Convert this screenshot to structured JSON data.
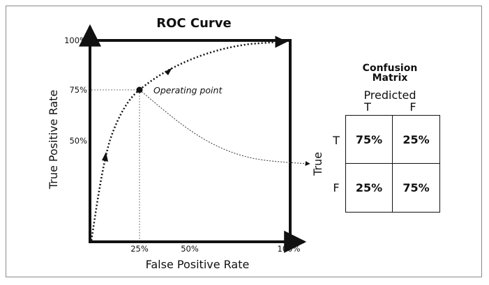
{
  "chart": {
    "title": "ROC Curve",
    "xlabel": "False Positive Rate",
    "ylabel": "True Positive Rate",
    "x_ticks": [
      "25%",
      "50%",
      "100%"
    ],
    "y_ticks": [
      "100%",
      "75%",
      "50%"
    ],
    "operating_point_label": "Operating point"
  },
  "matrix": {
    "title_line1": "Confusion",
    "title_line2": "Matrix",
    "predicted_label": "Predicted",
    "true_label": "True",
    "col_labels": [
      "T",
      "F"
    ],
    "row_labels": [
      "T",
      "F"
    ],
    "cells": [
      [
        "75%",
        "25%"
      ],
      [
        "25%",
        "75%"
      ]
    ]
  },
  "chart_data": {
    "type": "line",
    "title": "ROC Curve",
    "xlabel": "False Positive Rate",
    "ylabel": "True Positive Rate",
    "xlim": [
      0,
      100
    ],
    "ylim": [
      0,
      100
    ],
    "series": [
      {
        "x": [
          0,
          25,
          100
        ],
        "y": [
          0,
          75,
          100
        ]
      }
    ],
    "annotations": [
      {
        "text": "Operating point",
        "x": 25,
        "y": 75
      }
    ],
    "grid": false
  }
}
